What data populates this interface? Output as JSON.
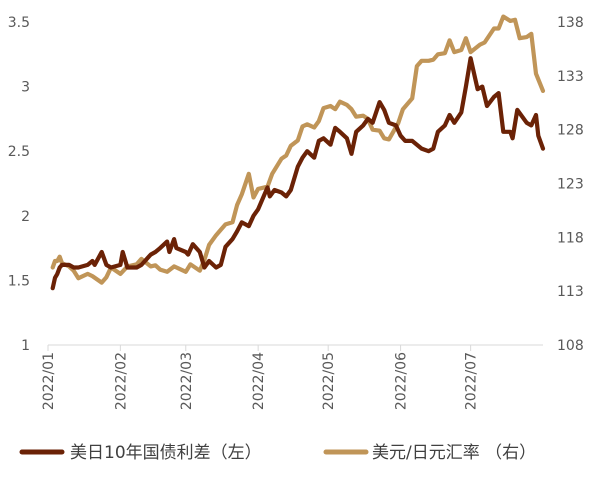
{
  "chart_data": {
    "type": "line",
    "title": "",
    "x_tick_labels": [
      "2022/01",
      "2022/02",
      "2022/03",
      "2022/04",
      "2022/05",
      "2022/06",
      "2022/07"
    ],
    "y_left": {
      "min": 1,
      "max": 3.5,
      "ticks": [
        "1",
        "1.5",
        "2",
        "2.5",
        "3",
        "3.5"
      ]
    },
    "y_right": {
      "min": 108,
      "max": 138,
      "ticks": [
        "108",
        "113",
        "118",
        "123",
        "128",
        "133",
        "138"
      ]
    },
    "grid": false,
    "legend_position": "bottom",
    "series": [
      {
        "name": "美日10年国债利差（左）",
        "axis": "left",
        "color": "#6B2206",
        "points": [
          [
            "2022-01-03",
            1.44
          ],
          [
            "2022-01-04",
            1.52
          ],
          [
            "2022-01-05",
            1.55
          ],
          [
            "2022-01-06",
            1.6
          ],
          [
            "2022-01-07",
            1.62
          ],
          [
            "2022-01-10",
            1.62
          ],
          [
            "2022-01-12",
            1.6
          ],
          [
            "2022-01-14",
            1.6
          ],
          [
            "2022-01-18",
            1.62
          ],
          [
            "2022-01-20",
            1.65
          ],
          [
            "2022-01-21",
            1.62
          ],
          [
            "2022-01-24",
            1.72
          ],
          [
            "2022-01-26",
            1.62
          ],
          [
            "2022-01-28",
            1.6
          ],
          [
            "2022-02-01",
            1.62
          ],
          [
            "2022-02-02",
            1.72
          ],
          [
            "2022-02-04",
            1.6
          ],
          [
            "2022-02-08",
            1.6
          ],
          [
            "2022-02-10",
            1.62
          ],
          [
            "2022-02-14",
            1.7
          ],
          [
            "2022-02-16",
            1.72
          ],
          [
            "2022-02-18",
            1.75
          ],
          [
            "2022-02-21",
            1.8
          ],
          [
            "2022-02-22",
            1.72
          ],
          [
            "2022-02-24",
            1.82
          ],
          [
            "2022-02-25",
            1.75
          ],
          [
            "2022-03-01",
            1.72
          ],
          [
            "2022-03-02",
            1.7
          ],
          [
            "2022-03-04",
            1.78
          ],
          [
            "2022-03-07",
            1.72
          ],
          [
            "2022-03-09",
            1.6
          ],
          [
            "2022-03-11",
            1.65
          ],
          [
            "2022-03-14",
            1.6
          ],
          [
            "2022-03-16",
            1.62
          ],
          [
            "2022-03-18",
            1.76
          ],
          [
            "2022-03-21",
            1.82
          ],
          [
            "2022-03-23",
            1.88
          ],
          [
            "2022-03-25",
            1.95
          ],
          [
            "2022-03-28",
            1.92
          ],
          [
            "2022-03-30",
            2.0
          ],
          [
            "2022-04-01",
            2.05
          ],
          [
            "2022-04-05",
            2.22
          ],
          [
            "2022-04-06",
            2.15
          ],
          [
            "2022-04-08",
            2.2
          ],
          [
            "2022-04-11",
            2.18
          ],
          [
            "2022-04-13",
            2.15
          ],
          [
            "2022-04-15",
            2.2
          ],
          [
            "2022-04-18",
            2.38
          ],
          [
            "2022-04-20",
            2.45
          ],
          [
            "2022-04-22",
            2.5
          ],
          [
            "2022-04-25",
            2.45
          ],
          [
            "2022-04-27",
            2.58
          ],
          [
            "2022-04-29",
            2.6
          ],
          [
            "2022-05-02",
            2.55
          ],
          [
            "2022-05-04",
            2.68
          ],
          [
            "2022-05-06",
            2.65
          ],
          [
            "2022-05-09",
            2.6
          ],
          [
            "2022-05-11",
            2.48
          ],
          [
            "2022-05-13",
            2.65
          ],
          [
            "2022-05-16",
            2.7
          ],
          [
            "2022-05-18",
            2.75
          ],
          [
            "2022-05-20",
            2.72
          ],
          [
            "2022-05-23",
            2.88
          ],
          [
            "2022-05-25",
            2.82
          ],
          [
            "2022-05-27",
            2.72
          ],
          [
            "2022-05-30",
            2.7
          ],
          [
            "2022-06-01",
            2.62
          ],
          [
            "2022-06-03",
            2.58
          ],
          [
            "2022-06-06",
            2.58
          ],
          [
            "2022-06-08",
            2.55
          ],
          [
            "2022-06-10",
            2.52
          ],
          [
            "2022-06-13",
            2.5
          ],
          [
            "2022-06-15",
            2.52
          ],
          [
            "2022-06-17",
            2.65
          ],
          [
            "2022-06-20",
            2.7
          ],
          [
            "2022-06-22",
            2.78
          ],
          [
            "2022-06-24",
            2.72
          ],
          [
            "2022-06-27",
            2.8
          ],
          [
            "2022-06-29",
            3.0
          ],
          [
            "2022-07-01",
            3.22
          ],
          [
            "2022-07-04",
            2.98
          ],
          [
            "2022-07-06",
            3.0
          ],
          [
            "2022-07-08",
            2.85
          ],
          [
            "2022-07-11",
            2.92
          ],
          [
            "2022-07-13",
            2.95
          ],
          [
            "2022-07-15",
            2.65
          ],
          [
            "2022-07-18",
            2.65
          ],
          [
            "2022-07-19",
            2.6
          ],
          [
            "2022-07-21",
            2.82
          ],
          [
            "2022-07-25",
            2.72
          ],
          [
            "2022-07-27",
            2.7
          ],
          [
            "2022-07-29",
            2.78
          ],
          [
            "2022-07-30",
            2.62
          ],
          [
            "2022-08-01",
            2.52
          ]
        ]
      },
      {
        "name": "美元/日元汇率  （右）",
        "axis": "right",
        "color": "#C09558",
        "points": [
          [
            "2022-01-03",
            115.2
          ],
          [
            "2022-01-04",
            115.8
          ],
          [
            "2022-01-05",
            115.8
          ],
          [
            "2022-01-06",
            116.2
          ],
          [
            "2022-01-07",
            115.6
          ],
          [
            "2022-01-10",
            115.3
          ],
          [
            "2022-01-12",
            114.9
          ],
          [
            "2022-01-14",
            114.2
          ],
          [
            "2022-01-18",
            114.6
          ],
          [
            "2022-01-20",
            114.4
          ],
          [
            "2022-01-24",
            113.8
          ],
          [
            "2022-01-26",
            114.3
          ],
          [
            "2022-01-28",
            115.2
          ],
          [
            "2022-02-01",
            114.6
          ],
          [
            "2022-02-04",
            115.3
          ],
          [
            "2022-02-08",
            115.5
          ],
          [
            "2022-02-10",
            116.0
          ],
          [
            "2022-02-14",
            115.3
          ],
          [
            "2022-02-16",
            115.4
          ],
          [
            "2022-02-18",
            115.0
          ],
          [
            "2022-02-21",
            114.8
          ],
          [
            "2022-02-24",
            115.3
          ],
          [
            "2022-03-01",
            114.8
          ],
          [
            "2022-03-03",
            115.5
          ],
          [
            "2022-03-07",
            114.9
          ],
          [
            "2022-03-09",
            115.9
          ],
          [
            "2022-03-11",
            117.3
          ],
          [
            "2022-03-14",
            118.2
          ],
          [
            "2022-03-16",
            118.7
          ],
          [
            "2022-03-18",
            119.2
          ],
          [
            "2022-03-21",
            119.4
          ],
          [
            "2022-03-23",
            121.0
          ],
          [
            "2022-03-25",
            122.0
          ],
          [
            "2022-03-28",
            123.9
          ],
          [
            "2022-03-30",
            121.7
          ],
          [
            "2022-04-01",
            122.5
          ],
          [
            "2022-04-05",
            122.7
          ],
          [
            "2022-04-07",
            123.9
          ],
          [
            "2022-04-11",
            125.3
          ],
          [
            "2022-04-13",
            125.6
          ],
          [
            "2022-04-15",
            126.5
          ],
          [
            "2022-04-18",
            127.0
          ],
          [
            "2022-04-20",
            128.3
          ],
          [
            "2022-04-22",
            128.5
          ],
          [
            "2022-04-25",
            128.2
          ],
          [
            "2022-04-27",
            128.8
          ],
          [
            "2022-04-29",
            130.0
          ],
          [
            "2022-05-02",
            130.2
          ],
          [
            "2022-05-04",
            129.9
          ],
          [
            "2022-05-06",
            130.6
          ],
          [
            "2022-05-09",
            130.3
          ],
          [
            "2022-05-11",
            129.9
          ],
          [
            "2022-05-13",
            129.2
          ],
          [
            "2022-05-16",
            129.3
          ],
          [
            "2022-05-18",
            129.0
          ],
          [
            "2022-05-20",
            128.0
          ],
          [
            "2022-05-23",
            127.9
          ],
          [
            "2022-05-25",
            127.2
          ],
          [
            "2022-05-27",
            127.1
          ],
          [
            "2022-05-31",
            128.6
          ],
          [
            "2022-06-02",
            129.9
          ],
          [
            "2022-06-06",
            130.9
          ],
          [
            "2022-06-08",
            133.9
          ],
          [
            "2022-06-10",
            134.4
          ],
          [
            "2022-06-13",
            134.4
          ],
          [
            "2022-06-15",
            134.5
          ],
          [
            "2022-06-17",
            135.0
          ],
          [
            "2022-06-20",
            135.1
          ],
          [
            "2022-06-22",
            136.3
          ],
          [
            "2022-06-24",
            135.2
          ],
          [
            "2022-06-27",
            135.4
          ],
          [
            "2022-06-29",
            136.5
          ],
          [
            "2022-07-01",
            135.2
          ],
          [
            "2022-07-05",
            135.9
          ],
          [
            "2022-07-07",
            136.1
          ],
          [
            "2022-07-11",
            137.4
          ],
          [
            "2022-07-13",
            137.4
          ],
          [
            "2022-07-15",
            138.5
          ],
          [
            "2022-07-18",
            138.1
          ],
          [
            "2022-07-20",
            138.2
          ],
          [
            "2022-07-22",
            136.5
          ],
          [
            "2022-07-25",
            136.6
          ],
          [
            "2022-07-27",
            136.9
          ],
          [
            "2022-07-29",
            133.2
          ],
          [
            "2022-08-01",
            131.6
          ]
        ]
      }
    ]
  }
}
